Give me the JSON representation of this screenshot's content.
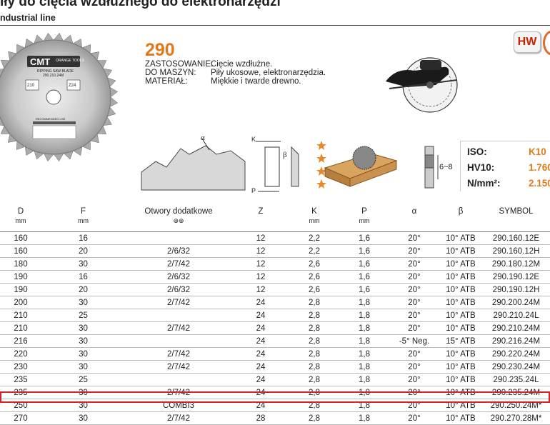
{
  "header": {
    "title": "iły do cięcia wzdłużnego do elektronarzędzi",
    "subtitle": "ndustrial line"
  },
  "product": {
    "code": "290",
    "properties": [
      {
        "key": "ZASTOSOWANIE:",
        "value": "Cięcie wzdłużne."
      },
      {
        "key": "DO MASZYN:",
        "value": "Piły ukosowe, elektronarzędzia."
      },
      {
        "key": "MATERIAŁ:",
        "value": "Miękkie i twarde drewno."
      }
    ],
    "badge": "HW"
  },
  "blade_label": {
    "brand": "CMT",
    "tagline": "ORANGE TOOLS",
    "type": "RIPPING SAW BLADE",
    "model": "290.210.24M",
    "d": "210",
    "z": "Z24",
    "recommended": "RECOMMENDED USE"
  },
  "diagram": {
    "alpha": "α",
    "beta": "β",
    "k": "K",
    "p": "P",
    "kerf": "6~8"
  },
  "spec": {
    "rows": [
      {
        "label": "ISO:",
        "value": "K10"
      },
      {
        "label": "HV10:",
        "value": "1.760"
      },
      {
        "label": "N/mm²:",
        "value": "2.150"
      }
    ]
  },
  "table": {
    "headers": [
      {
        "label": "D",
        "unit": "mm"
      },
      {
        "label": "F",
        "unit": "mm"
      },
      {
        "label": "Otwory dodatkowe",
        "unit": "⊕⊕"
      },
      {
        "label": "Z",
        "unit": ""
      },
      {
        "label": "K",
        "unit": "mm"
      },
      {
        "label": "P",
        "unit": "mm"
      },
      {
        "label": "α",
        "unit": ""
      },
      {
        "label": "β",
        "unit": ""
      },
      {
        "label": "SYMBOL",
        "unit": ""
      }
    ],
    "rows": [
      [
        "160",
        "16",
        "",
        "12",
        "2,2",
        "1,6",
        "20°",
        "10° ATB",
        "290.160.12E"
      ],
      [
        "160",
        "20",
        "2/6/32",
        "12",
        "2,2",
        "1,6",
        "20°",
        "10° ATB",
        "290.160.12H"
      ],
      [
        "180",
        "30",
        "2/7/42",
        "12",
        "2,6",
        "1,6",
        "20°",
        "10° ATB",
        "290.180.12M"
      ],
      [
        "190",
        "16",
        "2/6/32",
        "12",
        "2,6",
        "1,6",
        "20°",
        "10° ATB",
        "290.190.12E"
      ],
      [
        "190",
        "20",
        "2/6/32",
        "12",
        "2,6",
        "1,6",
        "20°",
        "10° ATB",
        "290.190.12H"
      ],
      [
        "200",
        "30",
        "2/7/42",
        "24",
        "2,8",
        "1,8",
        "20°",
        "10° ATB",
        "290.200.24M"
      ],
      [
        "210",
        "25",
        "",
        "24",
        "2,8",
        "1,8",
        "20°",
        "10° ATB",
        "290.210.24L"
      ],
      [
        "210",
        "30",
        "2/7/42",
        "24",
        "2,8",
        "1,8",
        "20°",
        "10° ATB",
        "290.210.24M"
      ],
      [
        "216",
        "30",
        "",
        "24",
        "2,8",
        "1,8",
        "-5° Neg.",
        "15° ATB",
        "290.216.24M"
      ],
      [
        "220",
        "30",
        "2/7/42",
        "24",
        "2,8",
        "1,8",
        "20°",
        "10° ATB",
        "290.220.24M"
      ],
      [
        "230",
        "30",
        "2/7/42",
        "24",
        "2,8",
        "1,8",
        "20°",
        "10° ATB",
        "290.230.24M"
      ],
      [
        "235",
        "25",
        "",
        "24",
        "2,8",
        "1,8",
        "20°",
        "10° ATB",
        "290.235.24L"
      ],
      [
        "235",
        "30",
        "2/7/42",
        "24",
        "2,8",
        "1,8",
        "20°",
        "10° ATB",
        "290.235.24M"
      ],
      [
        "250",
        "30",
        "COMBI3",
        "24",
        "2,8",
        "1,8",
        "20°",
        "10° ATB",
        "290.250.24M*"
      ],
      [
        "270",
        "30",
        "2/7/42",
        "28",
        "2,8",
        "1,8",
        "20°",
        "10° ATB",
        "290.270.28M*"
      ]
    ]
  }
}
